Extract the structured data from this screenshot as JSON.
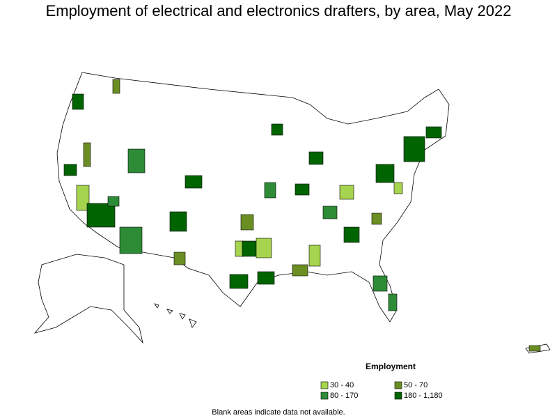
{
  "title": "Employment of electrical and electronics drafters, by area, May 2022",
  "legend": {
    "title": "Employment",
    "items": [
      {
        "label": "30 - 40",
        "color": "#a6d44e"
      },
      {
        "label": "50 - 70",
        "color": "#6b8e23"
      },
      {
        "label": "80 - 170",
        "color": "#2e8b36"
      },
      {
        "label": "180 - 1,180",
        "color": "#006400"
      }
    ]
  },
  "footnote": "Blank areas indicate data not available."
}
